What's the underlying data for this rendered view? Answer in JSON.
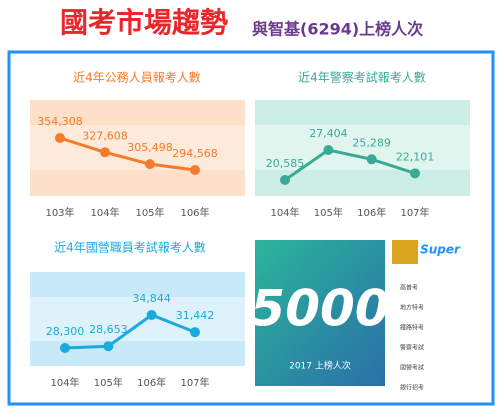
{
  "header": {
    "title": "國考市場趨勢",
    "subtitle": "與智基(6294)上榜人次"
  },
  "chart_data": [
    {
      "type": "line",
      "title": "近4年公務人員報考人數",
      "color": "#f37b2a",
      "categories": [
        "103年",
        "104年",
        "105年",
        "106年"
      ],
      "values": [
        354308,
        327608,
        305498,
        294568
      ],
      "value_labels": [
        "354,308",
        "327,608",
        "305,498",
        "294,568"
      ]
    },
    {
      "type": "line",
      "title": "近4年警察考試報考人數",
      "color": "#3aaa96",
      "categories": [
        "104年",
        "105年",
        "106年",
        "107年"
      ],
      "values": [
        20585,
        27404,
        25289,
        22101
      ],
      "value_labels": [
        "20,585",
        "27,404",
        "25,289",
        "22,101"
      ]
    },
    {
      "type": "line",
      "title": "近4年國營職員考試報考人數",
      "color": "#1ba9e0",
      "categories": [
        "104年",
        "105年",
        "106年",
        "107年"
      ],
      "values": [
        28300,
        28653,
        34844,
        31442
      ],
      "value_labels": [
        "28,300",
        "28,653",
        "34,844",
        "31,442"
      ]
    }
  ],
  "promo": {
    "number": "5000",
    "caption": "2017 上榜人次",
    "brand": "Super",
    "menu": [
      "高普考",
      "地方特考",
      "鐵路特考",
      "警察考試",
      "國營考試",
      "銀行招考"
    ]
  }
}
